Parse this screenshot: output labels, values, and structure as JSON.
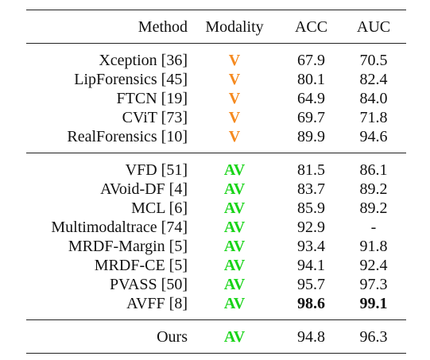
{
  "columns": [
    "Method",
    "Modality",
    "ACC",
    "AUC"
  ],
  "colors": {
    "v": "#F58A1F",
    "av": "#19D419"
  },
  "groups": [
    {
      "rows": [
        {
          "method": "Xception [36]",
          "modality": "V",
          "acc": "67.9",
          "auc": "70.5"
        },
        {
          "method": "LipForensics [45]",
          "modality": "V",
          "acc": "80.1",
          "auc": "82.4"
        },
        {
          "method": "FTCN [19]",
          "modality": "V",
          "acc": "64.9",
          "auc": "84.0"
        },
        {
          "method": "CViT [73]",
          "modality": "V",
          "acc": "69.7",
          "auc": "71.8"
        },
        {
          "method": "RealForensics [10]",
          "modality": "V",
          "acc": "89.9",
          "auc": "94.6"
        }
      ]
    },
    {
      "rows": [
        {
          "method": "VFD [51]",
          "modality": "AV",
          "acc": "81.5",
          "auc": "86.1"
        },
        {
          "method": "AVoid-DF [4]",
          "modality": "AV",
          "acc": "83.7",
          "auc": "89.2"
        },
        {
          "method": "MCL [6]",
          "modality": "AV",
          "acc": "85.9",
          "auc": "89.2"
        },
        {
          "method": "Multimodaltrace [74]",
          "modality": "AV",
          "acc": "92.9",
          "auc": "-"
        },
        {
          "method": "MRDF-Margin [5]",
          "modality": "AV",
          "acc": "93.4",
          "auc": "91.8"
        },
        {
          "method": "MRDF-CE [5]",
          "modality": "AV",
          "acc": "94.1",
          "auc": "92.4"
        },
        {
          "method": "PVASS [50]",
          "modality": "AV",
          "acc": "95.7",
          "auc": "97.3"
        },
        {
          "method": "AVFF [8]",
          "modality": "AV",
          "acc": "98.6",
          "auc": "99.1",
          "best": true
        }
      ]
    }
  ],
  "ours": {
    "method": "Ours",
    "modality": "AV",
    "acc": "94.8",
    "auc": "96.3"
  }
}
